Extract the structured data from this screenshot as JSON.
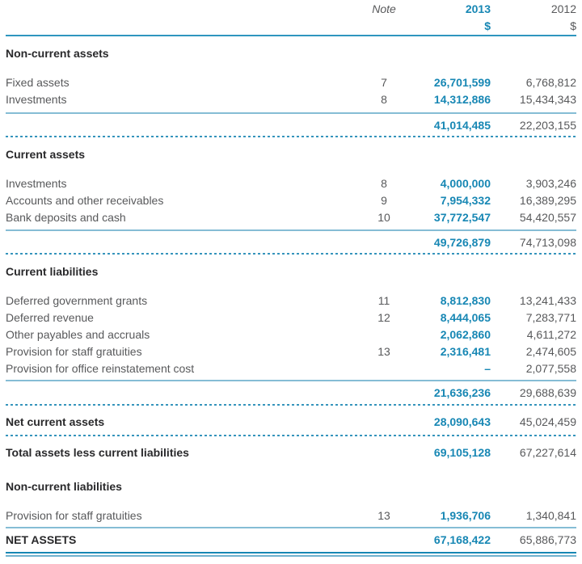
{
  "colors": {
    "accent": "#1787B4",
    "body_text": "#58595B",
    "heading_text": "#29292B",
    "header_rule": "#2E96BF",
    "subtotal_rule": "#85BDD5",
    "dashed_rule": "#3594BC",
    "double_rule_dark": "#1787B4",
    "double_rule_light": "#6FB2CE"
  },
  "header": {
    "note": "Note",
    "year_current": "2013",
    "year_prior": "2012",
    "currency_current": "$",
    "currency_prior": "$"
  },
  "non_current_assets": {
    "heading": "Non-current assets",
    "rows": [
      {
        "label": "Fixed assets",
        "note": "7",
        "y2013": "26,701,599",
        "y2012": "6,768,812"
      },
      {
        "label": "Investments",
        "note": "8",
        "y2013": "14,312,886",
        "y2012": "15,434,343"
      }
    ],
    "total": {
      "y2013": "41,014,485",
      "y2012": "22,203,155"
    }
  },
  "current_assets": {
    "heading": "Current assets",
    "rows": [
      {
        "label": "Investments",
        "note": "8",
        "y2013": "4,000,000",
        "y2012": "3,903,246"
      },
      {
        "label": "Accounts and other receivables",
        "note": "9",
        "y2013": "7,954,332",
        "y2012": "16,389,295"
      },
      {
        "label": "Bank deposits and cash",
        "note": "10",
        "y2013": "37,772,547",
        "y2012": "54,420,557"
      }
    ],
    "total": {
      "y2013": "49,726,879",
      "y2012": "74,713,098"
    }
  },
  "current_liabilities": {
    "heading": "Current liabilities",
    "rows": [
      {
        "label": "Deferred government grants",
        "note": "11",
        "y2013": "8,812,830",
        "y2012": "13,241,433"
      },
      {
        "label": "Deferred revenue",
        "note": "12",
        "y2013": "8,444,065",
        "y2012": "7,283,771"
      },
      {
        "label": "Other payables and accruals",
        "note": "",
        "y2013": "2,062,860",
        "y2012": "4,611,272"
      },
      {
        "label": "Provision for staff gratuities",
        "note": "13",
        "y2013": "2,316,481",
        "y2012": "2,474,605"
      },
      {
        "label": "Provision for office reinstatement cost",
        "note": "",
        "y2013": "–",
        "y2012": "2,077,558"
      }
    ],
    "total": {
      "y2013": "21,636,236",
      "y2012": "29,688,639"
    }
  },
  "net_current_assets": {
    "label": "Net current assets",
    "y2013": "28,090,643",
    "y2012": "45,024,459"
  },
  "total_assets_less_current_liabilities": {
    "label": "Total assets less current liabilities",
    "y2013": "69,105,128",
    "y2012": "67,227,614"
  },
  "non_current_liabilities": {
    "heading": "Non-current liabilities",
    "rows": [
      {
        "label": "Provision for staff gratuities",
        "note": "13",
        "y2013": "1,936,706",
        "y2012": "1,340,841"
      }
    ]
  },
  "net_assets": {
    "label": "NET ASSETS",
    "y2013": "67,168,422",
    "y2012": "65,886,773"
  }
}
